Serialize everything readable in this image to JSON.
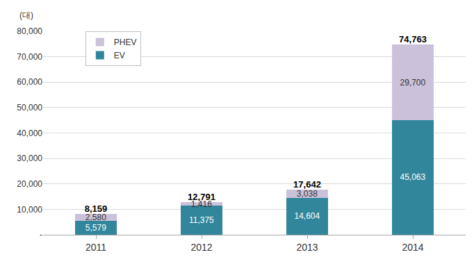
{
  "chart_data": {
    "type": "bar",
    "stacked": true,
    "data_labels": true,
    "grid": true,
    "legend": "upper left",
    "ylabel": "(대)",
    "categories": [
      "2011",
      "2012",
      "2013",
      "2014"
    ],
    "series": [
      {
        "name": "EV",
        "color": "#31869b",
        "values": [
          5579,
          11375,
          14604,
          45063
        ],
        "value_labels": [
          "5,579",
          "11,375",
          "14,604",
          "45,063"
        ]
      },
      {
        "name": "PHEV",
        "color": "#ccc1da",
        "values": [
          2580,
          1416,
          3038,
          29700
        ],
        "value_labels": [
          "2,580",
          "1,416",
          "3,038",
          "29,700"
        ]
      }
    ],
    "totals": [
      8159,
      12791,
      17642,
      74763
    ],
    "total_labels": [
      "8,159",
      "12,791",
      "17,642",
      "74,763"
    ],
    "ylim": [
      0,
      80000
    ],
    "yticks": [
      {
        "value": 0,
        "label": "-"
      },
      {
        "value": 10000,
        "label": "10,000"
      },
      {
        "value": 20000,
        "label": "20,000"
      },
      {
        "value": 30000,
        "label": "30,000"
      },
      {
        "value": 40000,
        "label": "40,000"
      },
      {
        "value": 50000,
        "label": "50,000"
      },
      {
        "value": 60000,
        "label": "60,000"
      },
      {
        "value": 70000,
        "label": "70,000"
      },
      {
        "value": 80000,
        "label": "80,000"
      }
    ]
  }
}
